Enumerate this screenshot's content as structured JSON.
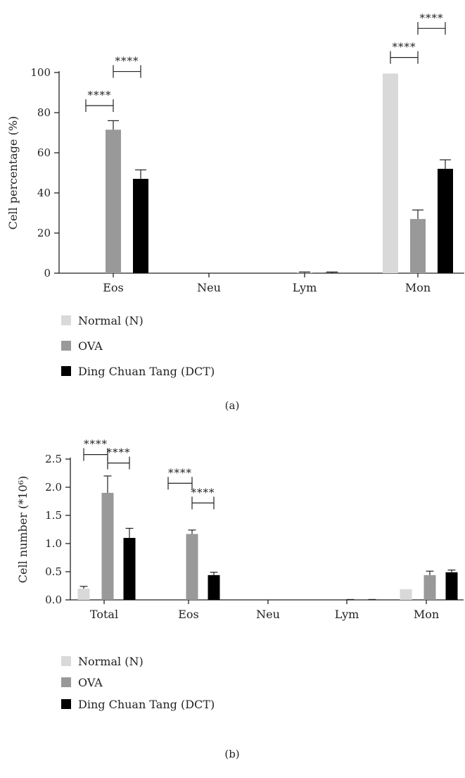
{
  "colors": {
    "normal": "#d9d9d9",
    "ova": "#999999",
    "dct": "#000000",
    "axis": "#222222",
    "text": "#222222"
  },
  "chart_data": [
    {
      "type": "bar",
      "panel_label": "(a)",
      "ylabel": "Cell percentage (%)",
      "ylim": [
        0,
        100
      ],
      "yticks": [
        0,
        20,
        40,
        60,
        80,
        100
      ],
      "categories": [
        "Eos",
        "Neu",
        "Lym",
        "Mon"
      ],
      "series": [
        {
          "name": "Normal (N)",
          "color_key": "normal",
          "values": [
            0,
            0,
            0,
            99.5
          ],
          "errors": [
            0,
            0,
            0,
            0
          ]
        },
        {
          "name": "OVA",
          "color_key": "ova",
          "values": [
            71.5,
            0,
            0.2,
            27
          ],
          "errors": [
            4.5,
            0,
            0.4,
            4.5
          ]
        },
        {
          "name": "Ding Chuan Tang (DCT)",
          "color_key": "dct",
          "values": [
            47,
            0,
            0.2,
            52
          ],
          "errors": [
            4.5,
            0,
            0.4,
            4.5
          ]
        }
      ],
      "significance": [
        {
          "category": 0,
          "from": 0,
          "to": 1,
          "y": 83.5,
          "label": "****"
        },
        {
          "category": 0,
          "from": 1,
          "to": 2,
          "y": 100.5,
          "label": "****"
        },
        {
          "category": 3,
          "from": 0,
          "to": 1,
          "y": 107.5,
          "label": "****"
        },
        {
          "category": 3,
          "from": 1,
          "to": 2,
          "y": 122,
          "label": "****"
        }
      ],
      "legend": [
        "Normal (N)",
        "OVA",
        "Ding Chuan Tang (DCT)"
      ]
    },
    {
      "type": "bar",
      "panel_label": "(b)",
      "ylabel": "Cell number (*10⁶)",
      "ylim": [
        0,
        2.5
      ],
      "yticks": [
        "0.0",
        "0.5",
        "1.0",
        "1.5",
        "2.0",
        "2.5"
      ],
      "categories": [
        "Total",
        "Eos",
        "Neu",
        "Lym",
        "Mon"
      ],
      "series": [
        {
          "name": "Normal (N)",
          "color_key": "normal",
          "values": [
            0.2,
            0,
            0,
            0,
            0.19
          ],
          "errors": [
            0.04,
            0,
            0,
            0,
            0
          ]
        },
        {
          "name": "OVA",
          "color_key": "ova",
          "values": [
            1.9,
            1.17,
            0,
            0.003,
            0.44
          ],
          "errors": [
            0.3,
            0.07,
            0,
            0.004,
            0.07
          ]
        },
        {
          "name": "Ding Chuan Tang (DCT)",
          "color_key": "dct",
          "values": [
            1.1,
            0.44,
            0,
            0.003,
            0.49
          ],
          "errors": [
            0.17,
            0.05,
            0,
            0.004,
            0.04
          ]
        }
      ],
      "significance": [
        {
          "category": 0,
          "from": 0,
          "to": 1,
          "y": 2.58,
          "label": "****"
        },
        {
          "category": 0,
          "from": 1,
          "to": 2,
          "y": 2.43,
          "label": "****"
        },
        {
          "category": 1,
          "from": 0,
          "to": 1,
          "y": 2.07,
          "label": "****"
        },
        {
          "category": 1,
          "from": 1,
          "to": 2,
          "y": 1.72,
          "label": "****"
        }
      ],
      "legend": [
        "Normal (N)",
        "OVA",
        "Ding Chuan Tang (DCT)"
      ]
    }
  ]
}
